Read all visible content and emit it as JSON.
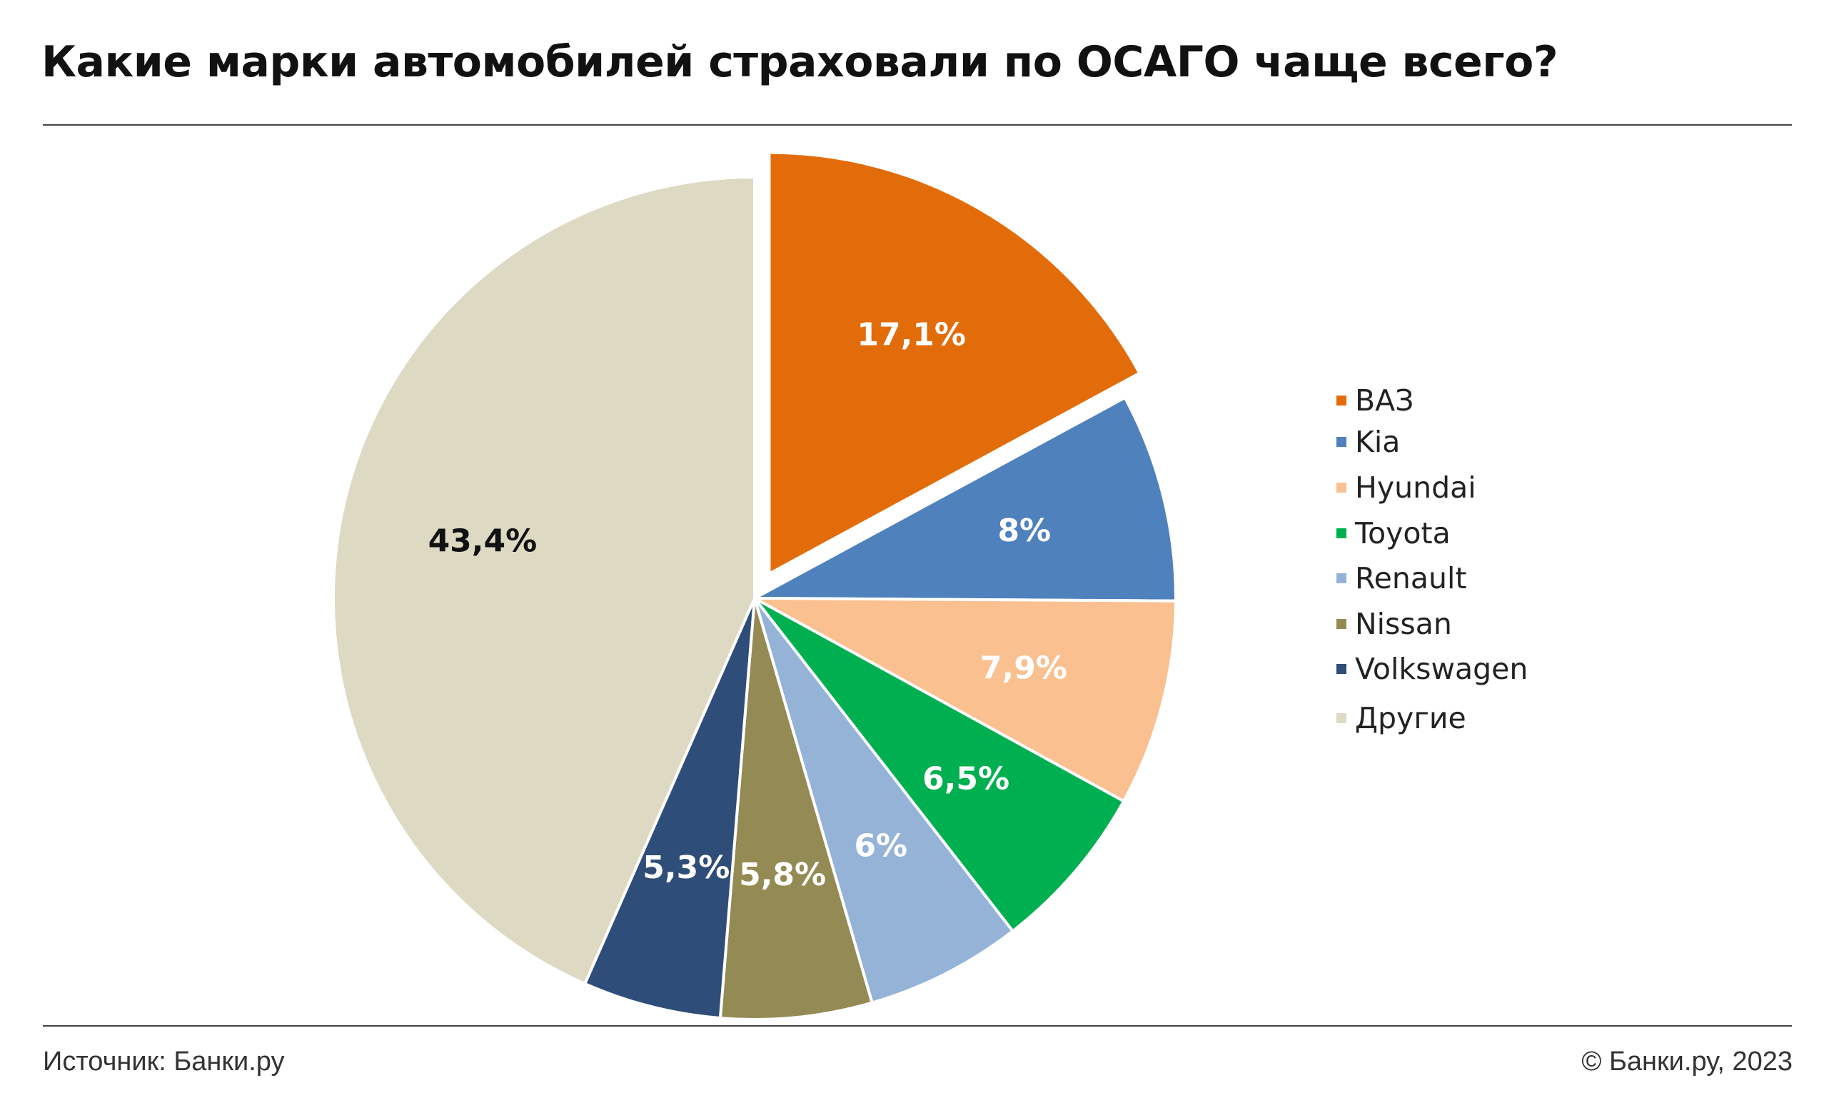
{
  "title": "Какие марки автомобилей страховали по ОСАГО чаще всего?",
  "source": "Источник: Банки.ру",
  "copyright": "© Банки.ру, 2023",
  "chart_data": {
    "type": "pie",
    "title": "Какие марки автомобилей страховали по ОСАГО чаще всего?",
    "legend_position": "right",
    "start": "top (12 o'clock), clockwise",
    "exploded": "ВАЗ",
    "slices": [
      {
        "label": "ВАЗ",
        "value": 17.1,
        "display": "17,1%",
        "color": "#E36C0A",
        "label_color": "#ffffff"
      },
      {
        "label": "Kia",
        "value": 8,
        "display": "8%",
        "color": "#4F81BD",
        "label_color": "#ffffff"
      },
      {
        "label": "Hyundai",
        "value": 7.9,
        "display": "7,9%",
        "color": "#FAC090",
        "label_color": "#ffffff"
      },
      {
        "label": "Toyota",
        "value": 6.5,
        "display": "6,5%",
        "color": "#00B050",
        "label_color": "#ffffff"
      },
      {
        "label": "Renault",
        "value": 6,
        "display": "6%",
        "color": "#95B3D7",
        "label_color": "#ffffff"
      },
      {
        "label": "Nissan",
        "value": 5.8,
        "display": "5,8%",
        "color": "#948A54",
        "label_color": "#ffffff"
      },
      {
        "label": "Volkswagen",
        "value": 5.3,
        "display": "5,3%",
        "color": "#2E4D78",
        "label_color": "#ffffff"
      },
      {
        "label": "Другие",
        "value": 43.4,
        "display": "43,4%",
        "color": "#DDD9C3",
        "label_color": "#111111"
      }
    ]
  }
}
